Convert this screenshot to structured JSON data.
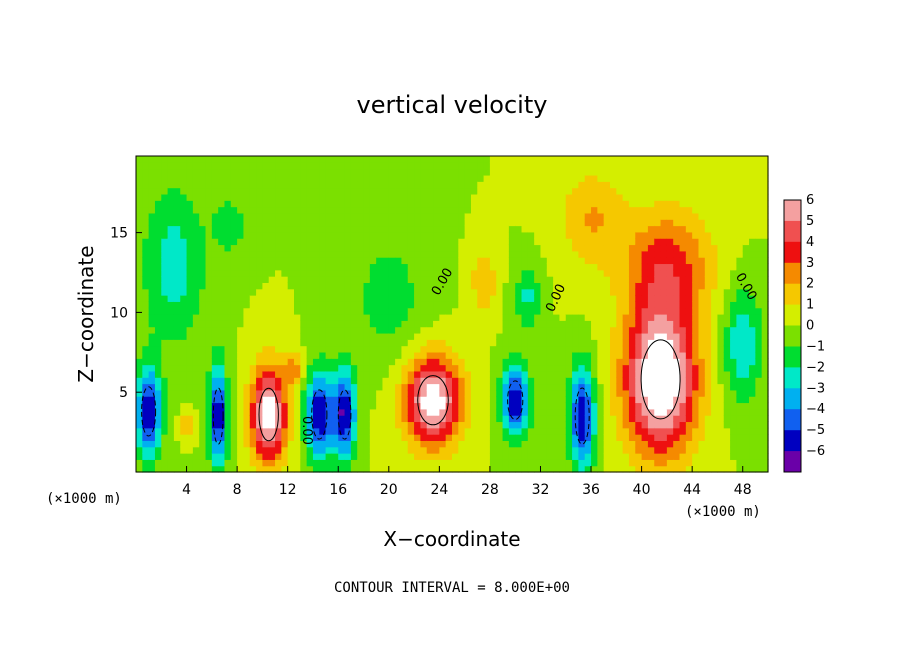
{
  "chart_data": {
    "type": "heatmap",
    "title": "vertical velocity",
    "xlabel": "X−coordinate",
    "ylabel": "Z−coordinate",
    "x_unit": "(×1000 m)",
    "y_unit": "(×1000 m)",
    "xlim": [
      0,
      50
    ],
    "ylim": [
      0,
      19.8
    ],
    "x_ticks": [
      4,
      8,
      12,
      16,
      20,
      24,
      28,
      32,
      36,
      40,
      44,
      48
    ],
    "y_ticks": [
      5,
      10,
      15
    ],
    "x_ticks_display": [
      "4",
      "8",
      "12",
      "16",
      "20",
      "24",
      "28",
      "32",
      "36",
      "40",
      "44",
      "48"
    ],
    "y_ticks_display": [
      "5",
      "10",
      "15"
    ],
    "colorbar": {
      "levels": [
        6,
        5,
        4,
        3,
        2,
        1,
        0,
        -1,
        -2,
        -3,
        -4,
        -5,
        -6
      ],
      "labels": [
        "6",
        "5",
        "4",
        "3",
        "2",
        "1",
        "0",
        "−1",
        "−2",
        "−3",
        "−4",
        "−5",
        "−6"
      ],
      "colors": [
        "#f4a0a0",
        "#f05050",
        "#ee1010",
        "#f58a00",
        "#f5c800",
        "#d4ee00",
        "#7be000",
        "#00dd30",
        "#00e8c8",
        "#00b0f0",
        "#1060f0",
        "#0000c0",
        "#6a00a8"
      ]
    },
    "background_value": 0.5,
    "cells": [
      {
        "x": 1.0,
        "z": 3.8,
        "sx": 1.0,
        "sz": 2.8,
        "w": -6
      },
      {
        "x": 6.5,
        "z": 3.5,
        "sx": 0.7,
        "sz": 3.2,
        "w": -6
      },
      {
        "x": 10.5,
        "z": 3.6,
        "sx": 1.4,
        "sz": 3.0,
        "w": 7
      },
      {
        "x": 14.5,
        "z": 3.6,
        "sx": 1.1,
        "sz": 2.8,
        "w": -6
      },
      {
        "x": 16.5,
        "z": 3.6,
        "sx": 0.9,
        "sz": 2.8,
        "w": -6
      },
      {
        "x": 23.5,
        "z": 4.5,
        "sx": 2.2,
        "sz": 2.8,
        "w": 7
      },
      {
        "x": 30.0,
        "z": 4.5,
        "sx": 1.1,
        "sz": 2.2,
        "w": -6
      },
      {
        "x": 35.3,
        "z": 3.5,
        "sx": 1.0,
        "sz": 3.2,
        "w": -6
      },
      {
        "x": 41.5,
        "z": 5.8,
        "sx": 2.8,
        "sz": 4.5,
        "w": 8
      },
      {
        "x": 42.0,
        "z": 13.0,
        "sx": 3.5,
        "sz": 3.5,
        "w": 3.5
      },
      {
        "x": 12.5,
        "z": 6.5,
        "sx": 0.8,
        "sz": 1.0,
        "w": 2.5
      },
      {
        "x": 4.0,
        "z": 3.0,
        "sx": 0.5,
        "sz": 0.8,
        "w": 2.5
      },
      {
        "x": 3.0,
        "z": 13.0,
        "sx": 2.5,
        "sz": 5.0,
        "w": -2.5
      },
      {
        "x": 7.5,
        "z": 15.5,
        "sx": 1.5,
        "sz": 2.0,
        "w": -1.5
      },
      {
        "x": 20.0,
        "z": 11.0,
        "sx": 3.0,
        "sz": 4.0,
        "w": -1.5
      },
      {
        "x": 31.0,
        "z": 11.0,
        "sx": 1.0,
        "sz": 2.0,
        "w": -2.2
      },
      {
        "x": 48.0,
        "z": 8.0,
        "sx": 1.5,
        "sz": 3.5,
        "w": -3.0
      },
      {
        "x": 27.5,
        "z": 12.0,
        "sx": 1.0,
        "sz": 2.0,
        "w": 2.0
      },
      {
        "x": 36.0,
        "z": 16.0,
        "sx": 2.5,
        "sz": 3.0,
        "w": 2.0
      }
    ],
    "contour_labels": [
      {
        "text": "0.00",
        "x": 24.5,
        "z": 11.8,
        "angle": -60
      },
      {
        "text": "0.00",
        "x": 33.5,
        "z": 10.8,
        "angle": -65
      },
      {
        "text": "0.00",
        "x": 13.2,
        "z": 2.6,
        "angle": 90
      },
      {
        "text": "0.00",
        "x": 48.0,
        "z": 11.5,
        "angle": 60
      }
    ],
    "footnote": "CONTOUR INTERVAL = 8.000E+00"
  }
}
